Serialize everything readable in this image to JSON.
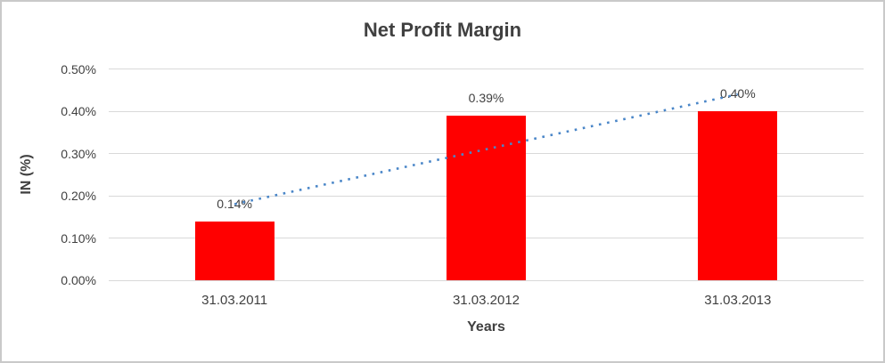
{
  "window": {
    "background_color": "#ffffff",
    "border_color": "#c9c9c9"
  },
  "chart_data": {
    "type": "bar",
    "title": "Net Profit Margin",
    "xlabel": "Years",
    "ylabel": "IN (%)",
    "categories": [
      "31.03.2011",
      "31.03.2012",
      "31.03.2013"
    ],
    "values": [
      0.14,
      0.39,
      0.4
    ],
    "data_labels": [
      "0.14%",
      "0.39%",
      "0.40%"
    ],
    "ylim": [
      0,
      0.5
    ],
    "ytick_step": 0.1,
    "ytick_labels": [
      "0.00%",
      "0.10%",
      "0.20%",
      "0.30%",
      "0.40%",
      "0.50%"
    ],
    "grid": true,
    "legend": "none",
    "bar_color": "#ff0000",
    "gridline_color": "#d9d9d9",
    "text_color": "#404040",
    "trendline": {
      "type": "linear",
      "style": "dotted",
      "color": "#4a86c8",
      "start_value": 0.18,
      "end_value": 0.44
    }
  }
}
